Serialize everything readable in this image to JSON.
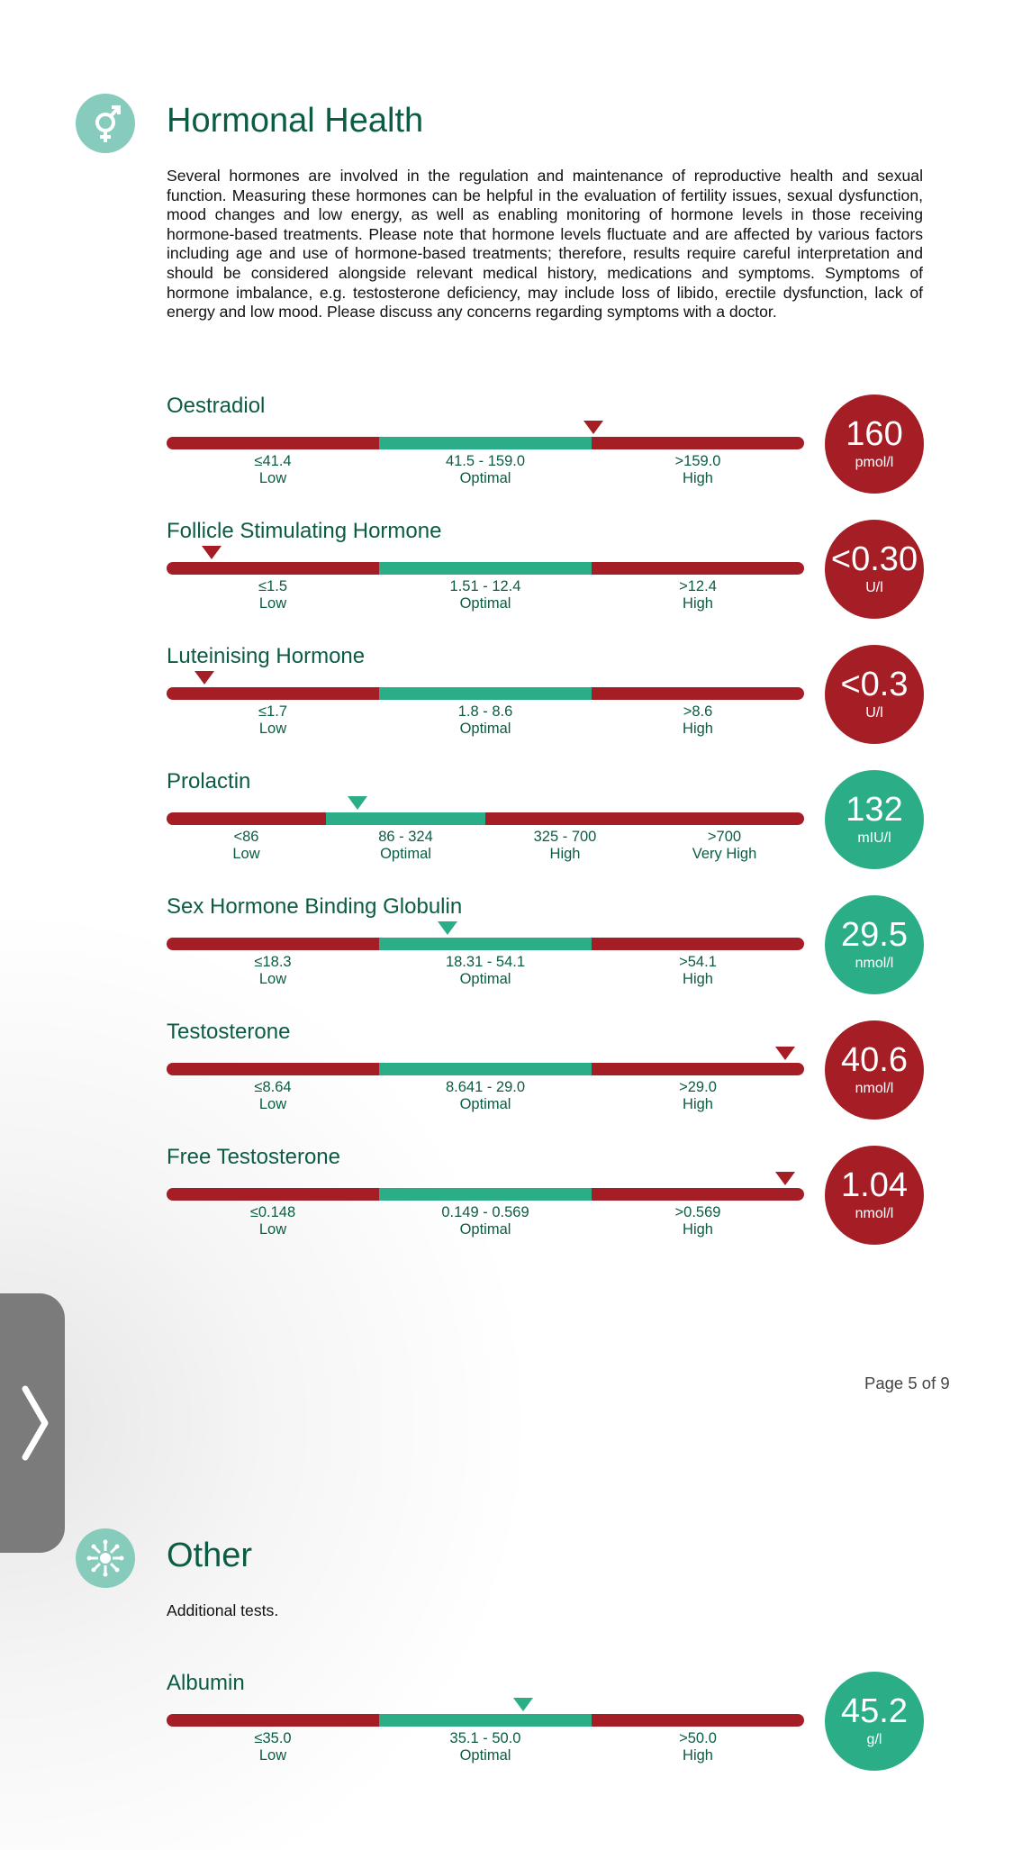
{
  "hormonal": {
    "title": "Hormonal Health",
    "icon": "gender-symbol-icon",
    "intro": "Several hormones are involved in the regulation and maintenance of reproductive health and sexual function. Measuring these hormones can be helpful in the evaluation of fertility issues, sexual dysfunction, mood changes and low energy, as well as enabling monitoring of hormone levels in those receiving hormone-based treatments. Please note that hormone levels fluctuate and are affected by various factors including age and use of hormone-based treatments; therefore, results require careful interpretation and should be considered alongside relevant medical history, medications and symptoms. Symptoms of hormone imbalance, e.g. testosterone deficiency, may include loss of libido, erectile dysfunction, lack of energy and low mood. Please discuss any concerns regarding symptoms with a doctor.",
    "tests": [
      {
        "name": "Oestradiol",
        "value": "160",
        "unit": "pmol/l",
        "status_color": "red",
        "marker_position": 0.67,
        "ranges": [
          {
            "range": "≤41.4",
            "label": "Low",
            "color": "red"
          },
          {
            "range": "41.5 - 159.0",
            "label": "Optimal",
            "color": "green"
          },
          {
            "range": ">159.0",
            "label": "High",
            "color": "red"
          }
        ]
      },
      {
        "name": "Follicle Stimulating Hormone",
        "value": "<0.30",
        "unit": "U/l",
        "status_color": "red",
        "marker_position": 0.07,
        "ranges": [
          {
            "range": "≤1.5",
            "label": "Low",
            "color": "red"
          },
          {
            "range": "1.51 - 12.4",
            "label": "Optimal",
            "color": "green"
          },
          {
            "range": ">12.4",
            "label": "High",
            "color": "red"
          }
        ]
      },
      {
        "name": "Luteinising Hormone",
        "value": "<0.3",
        "unit": "U/l",
        "status_color": "red",
        "marker_position": 0.06,
        "ranges": [
          {
            "range": "≤1.7",
            "label": "Low",
            "color": "red"
          },
          {
            "range": "1.8 - 8.6",
            "label": "Optimal",
            "color": "green"
          },
          {
            "range": ">8.6",
            "label": "High",
            "color": "red"
          }
        ]
      },
      {
        "name": "Prolactin",
        "value": "132",
        "unit": "mIU/l",
        "status_color": "green",
        "marker_position": 0.3,
        "ranges": [
          {
            "range": "<86",
            "label": "Low",
            "color": "red"
          },
          {
            "range": "86 - 324",
            "label": "Optimal",
            "color": "green"
          },
          {
            "range": "325 - 700",
            "label": "High",
            "color": "red"
          },
          {
            "range": ">700",
            "label": "Very High",
            "color": "red"
          }
        ]
      },
      {
        "name": "Sex Hormone Binding Globulin",
        "value": "29.5",
        "unit": "nmol/l",
        "status_color": "green",
        "marker_position": 0.44,
        "ranges": [
          {
            "range": "≤18.3",
            "label": "Low",
            "color": "red"
          },
          {
            "range": "18.31 - 54.1",
            "label": "Optimal",
            "color": "green"
          },
          {
            "range": ">54.1",
            "label": "High",
            "color": "red"
          }
        ]
      },
      {
        "name": "Testosterone",
        "value": "40.6",
        "unit": "nmol/l",
        "status_color": "red",
        "marker_position": 0.97,
        "ranges": [
          {
            "range": "≤8.64",
            "label": "Low",
            "color": "red"
          },
          {
            "range": "8.641 - 29.0",
            "label": "Optimal",
            "color": "green"
          },
          {
            "range": ">29.0",
            "label": "High",
            "color": "red"
          }
        ]
      },
      {
        "name": "Free Testosterone",
        "value": "1.04",
        "unit": "nmol/l",
        "status_color": "red",
        "marker_position": 0.97,
        "ranges": [
          {
            "range": "≤0.148",
            "label": "Low",
            "color": "red"
          },
          {
            "range": "0.149 - 0.569",
            "label": "Optimal",
            "color": "green"
          },
          {
            "range": ">0.569",
            "label": "High",
            "color": "red"
          }
        ]
      }
    ]
  },
  "page_number": "Page 5 of 9",
  "other": {
    "title": "Other",
    "icon": "virus-icon",
    "intro": "Additional tests.",
    "tests": [
      {
        "name": "Albumin",
        "value": "45.2",
        "unit": "g/l",
        "status_color": "green",
        "marker_position": 0.56,
        "ranges": [
          {
            "range": "≤35.0",
            "label": "Low",
            "color": "red"
          },
          {
            "range": "35.1 - 50.0",
            "label": "Optimal",
            "color": "green"
          },
          {
            "range": ">50.0",
            "label": "High",
            "color": "red"
          }
        ]
      }
    ]
  },
  "nav": {
    "next_icon": "chevron-right-icon"
  },
  "colors": {
    "red": "#a51d25",
    "green": "#2bae88",
    "title": "#0c5c45",
    "icon_bg": "#86cbbb"
  }
}
